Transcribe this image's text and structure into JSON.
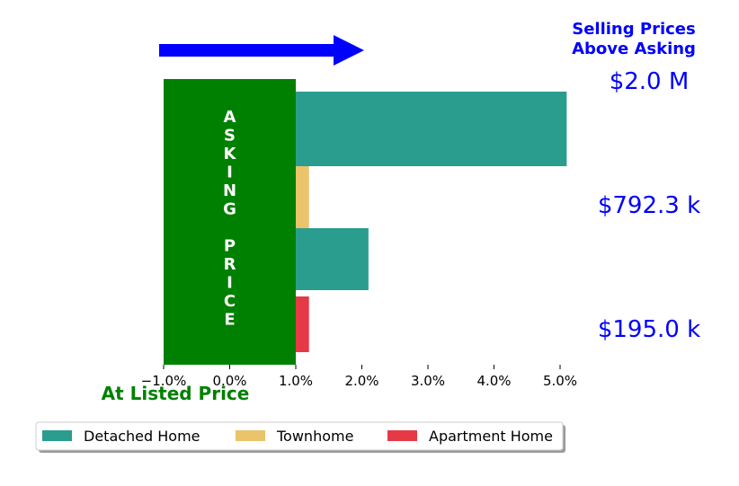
{
  "chart_data": {
    "type": "bar",
    "orientation": "horizontal",
    "xlim": [
      -1.0,
      5.0
    ],
    "xticks": [
      -1.0,
      0.0,
      1.0,
      2.0,
      3.0,
      4.0,
      5.0
    ],
    "xtick_labels": [
      "−1.0%",
      "0.0%",
      "1.0%",
      "2.0%",
      "3.0%",
      "4.0%",
      "5.0%"
    ],
    "categories": [
      "$2.0 M",
      "$792.3 k",
      "$195.0 k"
    ],
    "series": [
      {
        "name": "Detached Home",
        "color": "#2a9d8f",
        "values": [
          5.1,
          2.1,
          null
        ]
      },
      {
        "name": "Townhome",
        "color": "#e9c46a",
        "values": [
          null,
          1.2,
          null
        ]
      },
      {
        "name": "Apartment Home",
        "color": "#e63946",
        "values": [
          null,
          null,
          1.2
        ]
      }
    ],
    "bars": [
      {
        "series": "Detached Home",
        "value": 5.1
      },
      {
        "series": "Townhome",
        "value": 1.2
      },
      {
        "series": "Detached Home",
        "value": 2.1
      },
      {
        "series": "Apartment Home",
        "value": 1.2
      }
    ],
    "asking_band": {
      "from": -1.0,
      "to": 1.0,
      "color": "#008000",
      "label": "ASKING PRICE"
    },
    "header": {
      "line1": "Selling Prices",
      "line2": "Above Asking",
      "color": "#0000ff"
    },
    "baseline_label": {
      "text": "At Listed Price",
      "color": "#008000"
    },
    "price_labels": [
      "$2.0 M",
      "$792.3 k",
      "$195.0 k"
    ],
    "price_label_color": "#0000ff",
    "arrow_color": "#0000ff",
    "legend": {
      "placement": "bottom-left",
      "entries": [
        "Detached Home",
        "Townhome",
        "Apartment Home"
      ]
    }
  }
}
